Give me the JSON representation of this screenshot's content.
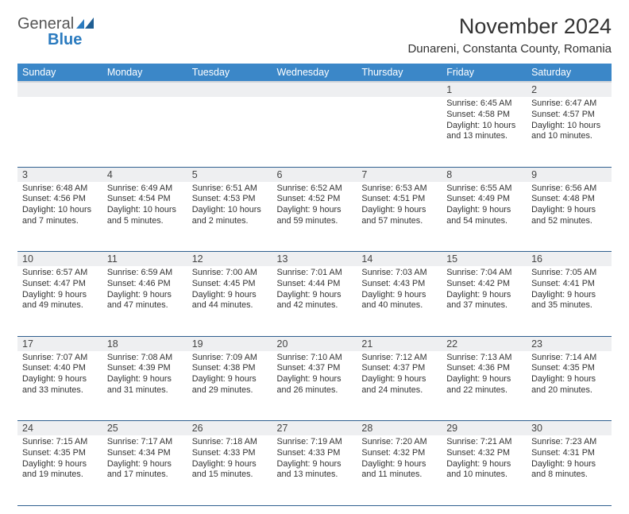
{
  "logo": {
    "text1": "General",
    "text2": "Blue"
  },
  "title": "November 2024",
  "location": "Dunareni, Constanta County, Romania",
  "colors": {
    "header_bg": "#3b87c8",
    "header_text": "#ffffff",
    "daynum_bg": "#eeeff1",
    "rule": "#2f5f8f",
    "logo_blue": "#2b7bbf"
  },
  "weekdays": [
    "Sunday",
    "Monday",
    "Tuesday",
    "Wednesday",
    "Thursday",
    "Friday",
    "Saturday"
  ],
  "weeks": [
    [
      {
        "n": "",
        "sr": "",
        "ss": "",
        "dl": ""
      },
      {
        "n": "",
        "sr": "",
        "ss": "",
        "dl": ""
      },
      {
        "n": "",
        "sr": "",
        "ss": "",
        "dl": ""
      },
      {
        "n": "",
        "sr": "",
        "ss": "",
        "dl": ""
      },
      {
        "n": "",
        "sr": "",
        "ss": "",
        "dl": ""
      },
      {
        "n": "1",
        "sr": "Sunrise: 6:45 AM",
        "ss": "Sunset: 4:58 PM",
        "dl": "Daylight: 10 hours and 13 minutes."
      },
      {
        "n": "2",
        "sr": "Sunrise: 6:47 AM",
        "ss": "Sunset: 4:57 PM",
        "dl": "Daylight: 10 hours and 10 minutes."
      }
    ],
    [
      {
        "n": "3",
        "sr": "Sunrise: 6:48 AM",
        "ss": "Sunset: 4:56 PM",
        "dl": "Daylight: 10 hours and 7 minutes."
      },
      {
        "n": "4",
        "sr": "Sunrise: 6:49 AM",
        "ss": "Sunset: 4:54 PM",
        "dl": "Daylight: 10 hours and 5 minutes."
      },
      {
        "n": "5",
        "sr": "Sunrise: 6:51 AM",
        "ss": "Sunset: 4:53 PM",
        "dl": "Daylight: 10 hours and 2 minutes."
      },
      {
        "n": "6",
        "sr": "Sunrise: 6:52 AM",
        "ss": "Sunset: 4:52 PM",
        "dl": "Daylight: 9 hours and 59 minutes."
      },
      {
        "n": "7",
        "sr": "Sunrise: 6:53 AM",
        "ss": "Sunset: 4:51 PM",
        "dl": "Daylight: 9 hours and 57 minutes."
      },
      {
        "n": "8",
        "sr": "Sunrise: 6:55 AM",
        "ss": "Sunset: 4:49 PM",
        "dl": "Daylight: 9 hours and 54 minutes."
      },
      {
        "n": "9",
        "sr": "Sunrise: 6:56 AM",
        "ss": "Sunset: 4:48 PM",
        "dl": "Daylight: 9 hours and 52 minutes."
      }
    ],
    [
      {
        "n": "10",
        "sr": "Sunrise: 6:57 AM",
        "ss": "Sunset: 4:47 PM",
        "dl": "Daylight: 9 hours and 49 minutes."
      },
      {
        "n": "11",
        "sr": "Sunrise: 6:59 AM",
        "ss": "Sunset: 4:46 PM",
        "dl": "Daylight: 9 hours and 47 minutes."
      },
      {
        "n": "12",
        "sr": "Sunrise: 7:00 AM",
        "ss": "Sunset: 4:45 PM",
        "dl": "Daylight: 9 hours and 44 minutes."
      },
      {
        "n": "13",
        "sr": "Sunrise: 7:01 AM",
        "ss": "Sunset: 4:44 PM",
        "dl": "Daylight: 9 hours and 42 minutes."
      },
      {
        "n": "14",
        "sr": "Sunrise: 7:03 AM",
        "ss": "Sunset: 4:43 PM",
        "dl": "Daylight: 9 hours and 40 minutes."
      },
      {
        "n": "15",
        "sr": "Sunrise: 7:04 AM",
        "ss": "Sunset: 4:42 PM",
        "dl": "Daylight: 9 hours and 37 minutes."
      },
      {
        "n": "16",
        "sr": "Sunrise: 7:05 AM",
        "ss": "Sunset: 4:41 PM",
        "dl": "Daylight: 9 hours and 35 minutes."
      }
    ],
    [
      {
        "n": "17",
        "sr": "Sunrise: 7:07 AM",
        "ss": "Sunset: 4:40 PM",
        "dl": "Daylight: 9 hours and 33 minutes."
      },
      {
        "n": "18",
        "sr": "Sunrise: 7:08 AM",
        "ss": "Sunset: 4:39 PM",
        "dl": "Daylight: 9 hours and 31 minutes."
      },
      {
        "n": "19",
        "sr": "Sunrise: 7:09 AM",
        "ss": "Sunset: 4:38 PM",
        "dl": "Daylight: 9 hours and 29 minutes."
      },
      {
        "n": "20",
        "sr": "Sunrise: 7:10 AM",
        "ss": "Sunset: 4:37 PM",
        "dl": "Daylight: 9 hours and 26 minutes."
      },
      {
        "n": "21",
        "sr": "Sunrise: 7:12 AM",
        "ss": "Sunset: 4:37 PM",
        "dl": "Daylight: 9 hours and 24 minutes."
      },
      {
        "n": "22",
        "sr": "Sunrise: 7:13 AM",
        "ss": "Sunset: 4:36 PM",
        "dl": "Daylight: 9 hours and 22 minutes."
      },
      {
        "n": "23",
        "sr": "Sunrise: 7:14 AM",
        "ss": "Sunset: 4:35 PM",
        "dl": "Daylight: 9 hours and 20 minutes."
      }
    ],
    [
      {
        "n": "24",
        "sr": "Sunrise: 7:15 AM",
        "ss": "Sunset: 4:35 PM",
        "dl": "Daylight: 9 hours and 19 minutes."
      },
      {
        "n": "25",
        "sr": "Sunrise: 7:17 AM",
        "ss": "Sunset: 4:34 PM",
        "dl": "Daylight: 9 hours and 17 minutes."
      },
      {
        "n": "26",
        "sr": "Sunrise: 7:18 AM",
        "ss": "Sunset: 4:33 PM",
        "dl": "Daylight: 9 hours and 15 minutes."
      },
      {
        "n": "27",
        "sr": "Sunrise: 7:19 AM",
        "ss": "Sunset: 4:33 PM",
        "dl": "Daylight: 9 hours and 13 minutes."
      },
      {
        "n": "28",
        "sr": "Sunrise: 7:20 AM",
        "ss": "Sunset: 4:32 PM",
        "dl": "Daylight: 9 hours and 11 minutes."
      },
      {
        "n": "29",
        "sr": "Sunrise: 7:21 AM",
        "ss": "Sunset: 4:32 PM",
        "dl": "Daylight: 9 hours and 10 minutes."
      },
      {
        "n": "30",
        "sr": "Sunrise: 7:23 AM",
        "ss": "Sunset: 4:31 PM",
        "dl": "Daylight: 9 hours and 8 minutes."
      }
    ]
  ]
}
